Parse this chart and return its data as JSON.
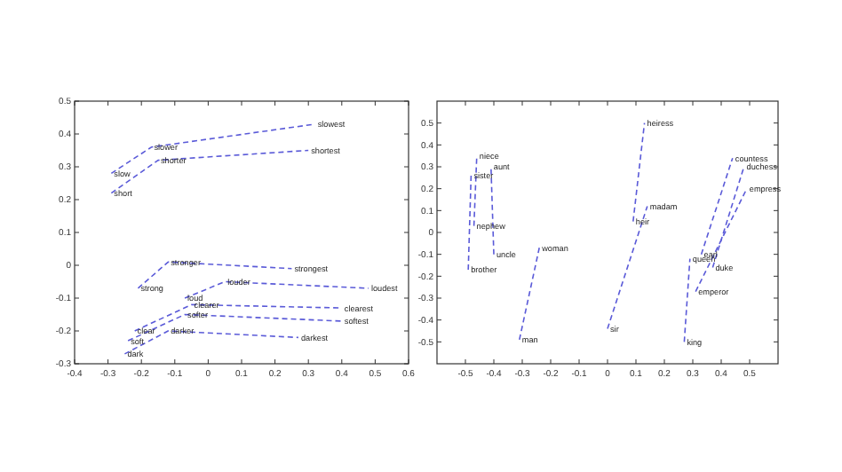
{
  "chart_data": [
    {
      "type": "line",
      "line_style": "dashed",
      "marker": "none",
      "xlim": [
        -0.4,
        0.6
      ],
      "ylim": [
        -0.3,
        0.5
      ],
      "xticks": [
        -0.4,
        -0.3,
        -0.2,
        -0.1,
        0,
        0.1,
        0.2,
        0.3,
        0.4,
        0.5,
        0.6
      ],
      "yticks": [
        -0.3,
        -0.2,
        -0.1,
        0,
        0.1,
        0.2,
        0.3,
        0.4,
        0.5
      ],
      "series": [
        {
          "color": "#5a5ad8",
          "x": [
            -0.29,
            -0.17,
            0.32
          ],
          "values": [
            0.28,
            0.36,
            0.43
          ]
        },
        {
          "color": "#5a5ad8",
          "x": [
            -0.29,
            -0.15,
            0.3
          ],
          "values": [
            0.22,
            0.32,
            0.35
          ]
        },
        {
          "color": "#5a5ad8",
          "x": [
            -0.21,
            -0.12,
            0.25
          ],
          "values": [
            -0.07,
            0.01,
            -0.01
          ]
        },
        {
          "color": "#5a5ad8",
          "x": [
            -0.07,
            0.05,
            0.48
          ],
          "values": [
            -0.1,
            -0.05,
            -0.07
          ]
        },
        {
          "color": "#5a5ad8",
          "x": [
            -0.22,
            -0.05,
            0.4
          ],
          "values": [
            -0.2,
            -0.12,
            -0.13
          ]
        },
        {
          "color": "#5a5ad8",
          "x": [
            -0.24,
            -0.07,
            0.4
          ],
          "values": [
            -0.23,
            -0.15,
            -0.17
          ]
        },
        {
          "color": "#5a5ad8",
          "x": [
            -0.25,
            -0.12,
            0.27
          ],
          "values": [
            -0.27,
            -0.2,
            -0.22
          ]
        }
      ],
      "annotations": [
        {
          "text": "slow",
          "x": -0.29,
          "y": 0.28
        },
        {
          "text": "slower",
          "x": -0.17,
          "y": 0.36
        },
        {
          "text": "slowest",
          "x": 0.32,
          "y": 0.43
        },
        {
          "text": "short",
          "x": -0.29,
          "y": 0.22
        },
        {
          "text": "shorter",
          "x": -0.15,
          "y": 0.32
        },
        {
          "text": "shortest",
          "x": 0.3,
          "y": 0.35
        },
        {
          "text": "strong",
          "x": -0.21,
          "y": -0.07
        },
        {
          "text": "stronger",
          "x": -0.12,
          "y": 0.01
        },
        {
          "text": "strongest",
          "x": 0.25,
          "y": -0.01
        },
        {
          "text": "loud",
          "x": -0.07,
          "y": -0.1
        },
        {
          "text": "louder",
          "x": 0.05,
          "y": -0.05
        },
        {
          "text": "loudest",
          "x": 0.48,
          "y": -0.07
        },
        {
          "text": "clear",
          "x": -0.22,
          "y": -0.2
        },
        {
          "text": "clearer",
          "x": -0.05,
          "y": -0.12
        },
        {
          "text": "clearest",
          "x": 0.4,
          "y": -0.13
        },
        {
          "text": "soft",
          "x": -0.24,
          "y": -0.23
        },
        {
          "text": "softer",
          "x": -0.07,
          "y": -0.15
        },
        {
          "text": "softest",
          "x": 0.4,
          "y": -0.17
        },
        {
          "text": "dark",
          "x": -0.25,
          "y": -0.27
        },
        {
          "text": "darker",
          "x": -0.12,
          "y": -0.2
        },
        {
          "text": "darkest",
          "x": 0.27,
          "y": -0.22
        }
      ]
    },
    {
      "type": "line",
      "line_style": "dashed",
      "marker": "none",
      "xlim": [
        -0.6,
        0.6
      ],
      "ylim": [
        -0.6,
        0.6
      ],
      "xticks": [
        -0.5,
        -0.4,
        -0.3,
        -0.2,
        -0.1,
        0,
        0.1,
        0.2,
        0.3,
        0.4,
        0.5
      ],
      "yticks": [
        -0.5,
        -0.4,
        -0.3,
        -0.2,
        -0.1,
        0,
        0.1,
        0.2,
        0.3,
        0.4,
        0.5
      ],
      "series": [
        {
          "color": "#5a5ad8",
          "x": [
            -0.49,
            -0.48
          ],
          "values": [
            -0.17,
            0.26
          ]
        },
        {
          "color": "#5a5ad8",
          "x": [
            -0.47,
            -0.46
          ],
          "values": [
            0.03,
            0.35
          ]
        },
        {
          "color": "#5a5ad8",
          "x": [
            -0.4,
            -0.41
          ],
          "values": [
            -0.1,
            0.3
          ]
        },
        {
          "color": "#5a5ad8",
          "x": [
            -0.31,
            -0.24
          ],
          "values": [
            -0.49,
            -0.07
          ]
        },
        {
          "color": "#5a5ad8",
          "x": [
            0.0,
            0.14
          ],
          "values": [
            -0.44,
            0.12
          ]
        },
        {
          "color": "#5a5ad8",
          "x": [
            0.09,
            0.13
          ],
          "values": [
            0.05,
            0.5
          ]
        },
        {
          "color": "#5a5ad8",
          "x": [
            0.27,
            0.29
          ],
          "values": [
            -0.5,
            -0.12
          ]
        },
        {
          "color": "#5a5ad8",
          "x": [
            0.33,
            0.44
          ],
          "values": [
            -0.1,
            0.34
          ]
        },
        {
          "color": "#5a5ad8",
          "x": [
            0.37,
            0.48
          ],
          "values": [
            -0.16,
            0.3
          ]
        },
        {
          "color": "#5a5ad8",
          "x": [
            0.31,
            0.49
          ],
          "values": [
            -0.27,
            0.2
          ]
        }
      ],
      "annotations": [
        {
          "text": "brother",
          "x": -0.49,
          "y": -0.17
        },
        {
          "text": "sister",
          "x": -0.48,
          "y": 0.26
        },
        {
          "text": "nephew",
          "x": -0.47,
          "y": 0.03
        },
        {
          "text": "niece",
          "x": -0.46,
          "y": 0.35
        },
        {
          "text": "uncle",
          "x": -0.4,
          "y": -0.1
        },
        {
          "text": "aunt",
          "x": -0.41,
          "y": 0.3
        },
        {
          "text": "man",
          "x": -0.31,
          "y": -0.49
        },
        {
          "text": "woman",
          "x": -0.24,
          "y": -0.07
        },
        {
          "text": "sir",
          "x": 0.0,
          "y": -0.44
        },
        {
          "text": "madam",
          "x": 0.14,
          "y": 0.12
        },
        {
          "text": "heir",
          "x": 0.09,
          "y": 0.05
        },
        {
          "text": "heiress",
          "x": 0.13,
          "y": 0.5
        },
        {
          "text": "king",
          "x": 0.27,
          "y": -0.5
        },
        {
          "text": "queen",
          "x": 0.29,
          "y": -0.12
        },
        {
          "text": "earl",
          "x": 0.33,
          "y": -0.1
        },
        {
          "text": "countess",
          "x": 0.44,
          "y": 0.34
        },
        {
          "text": "duke",
          "x": 0.37,
          "y": -0.16
        },
        {
          "text": "duchess",
          "x": 0.48,
          "y": 0.3
        },
        {
          "text": "emperor",
          "x": 0.31,
          "y": -0.27
        },
        {
          "text": "empress",
          "x": 0.49,
          "y": 0.2
        }
      ]
    }
  ]
}
